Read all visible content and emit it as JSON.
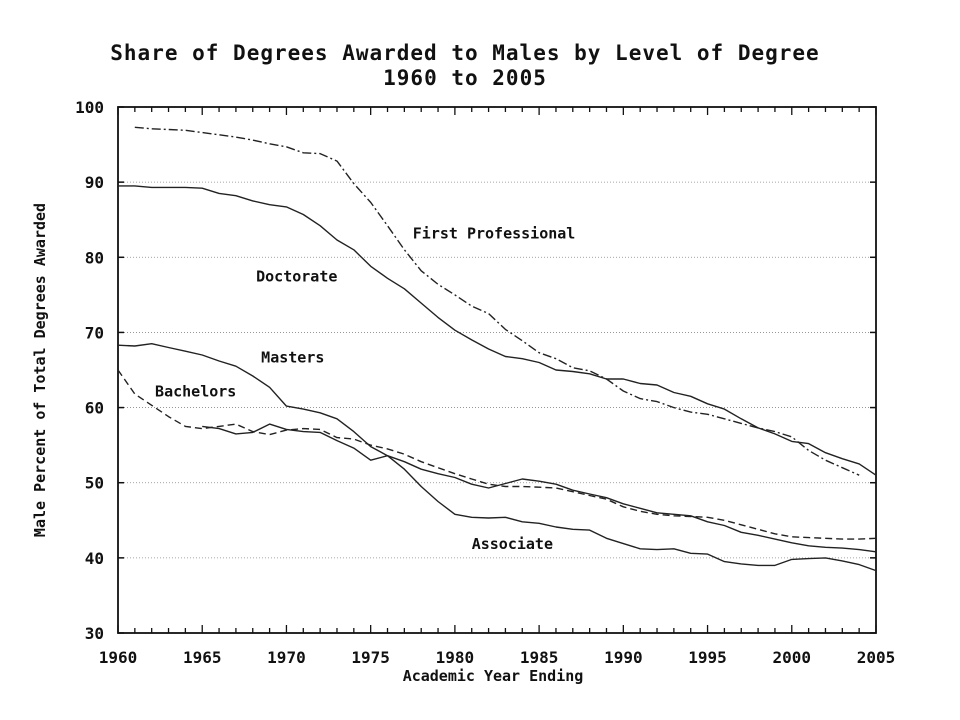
{
  "chart_data": {
    "type": "line",
    "title": "Share of Degrees Awarded to Males by Level of Degree",
    "subtitle": "1960 to 2005",
    "xlabel": "Academic Year Ending",
    "ylabel": "Male Percent of Total Degrees Awarded",
    "xlim": [
      1960,
      2005
    ],
    "ylim": [
      30,
      100
    ],
    "x_ticks": [
      1960,
      1965,
      1970,
      1975,
      1980,
      1985,
      1990,
      1995,
      2000,
      2005
    ],
    "y_ticks": [
      30,
      40,
      50,
      60,
      70,
      80,
      90,
      100
    ],
    "grid": "horizontal dotted",
    "legend": "inline labels",
    "series": [
      {
        "name": "First Professional",
        "style": "dash-dot",
        "x": [
          1961,
          1962,
          1963,
          1964,
          1965,
          1966,
          1967,
          1968,
          1969,
          1970,
          1971,
          1972,
          1973,
          1974,
          1975,
          1976,
          1977,
          1978,
          1979,
          1980,
          1981,
          1982,
          1983,
          1984,
          1985,
          1986,
          1987,
          1988,
          1989,
          1990,
          1991,
          1992,
          1993,
          1994,
          1995,
          1996,
          1997,
          1998,
          1999,
          2000,
          2001,
          2002,
          2003,
          2004
        ],
        "values": [
          97.3,
          97.1,
          97.0,
          96.9,
          96.6,
          96.3,
          96.0,
          95.6,
          95.1,
          94.7,
          93.9,
          93.8,
          92.8,
          89.8,
          87.3,
          84.2,
          81.0,
          78.2,
          76.4,
          75.0,
          73.5,
          72.5,
          70.4,
          68.9,
          67.3,
          66.5,
          65.3,
          64.9,
          63.8,
          62.2,
          61.2,
          60.8,
          60.0,
          59.4,
          59.1,
          58.5,
          57.9,
          57.3,
          56.8,
          56.1,
          54.3,
          53.0,
          52.0,
          51.0
        ]
      },
      {
        "name": "Doctorate",
        "style": "solid",
        "x": [
          1960,
          1961,
          1962,
          1963,
          1964,
          1965,
          1966,
          1967,
          1968,
          1969,
          1970,
          1971,
          1972,
          1973,
          1974,
          1975,
          1976,
          1977,
          1978,
          1979,
          1980,
          1981,
          1982,
          1983,
          1984,
          1985,
          1986,
          1987,
          1988,
          1989,
          1990,
          1991,
          1992,
          1993,
          1994,
          1995,
          1996,
          1997,
          1998,
          1999,
          2000,
          2001,
          2002,
          2003,
          2004,
          2005
        ],
        "values": [
          89.5,
          89.5,
          89.3,
          89.3,
          89.3,
          89.2,
          88.5,
          88.2,
          87.5,
          87.0,
          86.7,
          85.7,
          84.2,
          82.3,
          81.0,
          78.8,
          77.2,
          75.8,
          73.9,
          72.0,
          70.3,
          69.0,
          67.8,
          66.8,
          66.5,
          66.0,
          65.0,
          64.8,
          64.5,
          63.8,
          63.8,
          63.2,
          63.0,
          62.0,
          61.5,
          60.5,
          59.8,
          58.5,
          57.3,
          56.5,
          55.5,
          55.2,
          54.0,
          53.2,
          52.5,
          51.0
        ]
      },
      {
        "name": "Masters",
        "style": "solid",
        "x": [
          1960,
          1961,
          1962,
          1963,
          1964,
          1965,
          1966,
          1967,
          1968,
          1969,
          1970,
          1971,
          1972,
          1973,
          1974,
          1975,
          1976,
          1977,
          1978,
          1979,
          1980,
          1981,
          1982,
          1983,
          1984,
          1985,
          1986,
          1987,
          1988,
          1989,
          1990,
          1991,
          1992,
          1993,
          1994,
          1995,
          1996,
          1997,
          1998,
          1999,
          2000,
          2001,
          2002,
          2003,
          2004,
          2005
        ],
        "values": [
          68.3,
          68.2,
          68.5,
          68.0,
          67.5,
          67.0,
          66.2,
          65.5,
          64.2,
          62.7,
          60.2,
          59.8,
          59.3,
          58.5,
          56.8,
          54.8,
          53.6,
          52.8,
          51.8,
          51.2,
          50.7,
          49.8,
          49.3,
          49.9,
          50.5,
          50.2,
          49.8,
          49.0,
          48.5,
          48.0,
          47.2,
          46.6,
          46.0,
          45.8,
          45.6,
          44.8,
          44.3,
          43.4,
          43.0,
          42.5,
          42.0,
          41.6,
          41.4,
          41.3,
          41.1,
          40.8
        ]
      },
      {
        "name": "Bachelors",
        "style": "dashed",
        "x": [
          1960,
          1961,
          1962,
          1963,
          1964,
          1965,
          1966,
          1967,
          1968,
          1969,
          1970,
          1971,
          1972,
          1973,
          1974,
          1975,
          1976,
          1977,
          1978,
          1979,
          1980,
          1981,
          1982,
          1983,
          1984,
          1985,
          1986,
          1987,
          1988,
          1989,
          1990,
          1991,
          1992,
          1993,
          1994,
          1995,
          1996,
          1997,
          1998,
          1999,
          2000,
          2001,
          2002,
          2003,
          2004,
          2005
        ],
        "values": [
          65.0,
          61.8,
          60.3,
          58.8,
          57.5,
          57.2,
          57.5,
          57.8,
          56.8,
          56.4,
          57.0,
          57.2,
          57.1,
          56.0,
          55.8,
          55.0,
          54.5,
          53.8,
          52.8,
          52.0,
          51.2,
          50.5,
          49.8,
          49.5,
          49.5,
          49.4,
          49.3,
          48.8,
          48.3,
          47.8,
          46.8,
          46.2,
          45.8,
          45.6,
          45.5,
          45.4,
          45.0,
          44.4,
          43.8,
          43.2,
          42.8,
          42.7,
          42.6,
          42.5,
          42.5,
          42.6
        ]
      },
      {
        "name": "Associate",
        "style": "solid",
        "x": [
          1965,
          1966,
          1967,
          1968,
          1969,
          1970,
          1971,
          1972,
          1973,
          1974,
          1975,
          1976,
          1977,
          1978,
          1979,
          1980,
          1981,
          1982,
          1983,
          1984,
          1985,
          1986,
          1987,
          1988,
          1989,
          1990,
          1991,
          1992,
          1993,
          1994,
          1995,
          1996,
          1997,
          1998,
          1999,
          2000,
          2001,
          2002,
          2003,
          2004,
          2005
        ],
        "values": [
          57.5,
          57.2,
          56.5,
          56.7,
          57.8,
          57.1,
          56.8,
          56.7,
          55.6,
          54.6,
          53.0,
          53.6,
          51.8,
          49.5,
          47.5,
          45.8,
          45.4,
          45.3,
          45.4,
          44.8,
          44.6,
          44.1,
          43.8,
          43.7,
          42.6,
          41.9,
          41.2,
          41.1,
          41.2,
          40.6,
          40.5,
          39.5,
          39.2,
          39.0,
          39.0,
          39.8,
          39.9,
          40.0,
          39.6,
          39.1,
          38.3
        ]
      }
    ],
    "annotations": [
      {
        "text": "First Professional",
        "x": 1977.5,
        "y": 82.5
      },
      {
        "text": "Doctorate",
        "x": 1968.2,
        "y": 76.8
      },
      {
        "text": "Masters",
        "x": 1968.5,
        "y": 66.0
      },
      {
        "text": "Bachelors",
        "x": 1962.2,
        "y": 61.5
      },
      {
        "text": "Associate",
        "x": 1981.0,
        "y": 41.2
      }
    ]
  }
}
